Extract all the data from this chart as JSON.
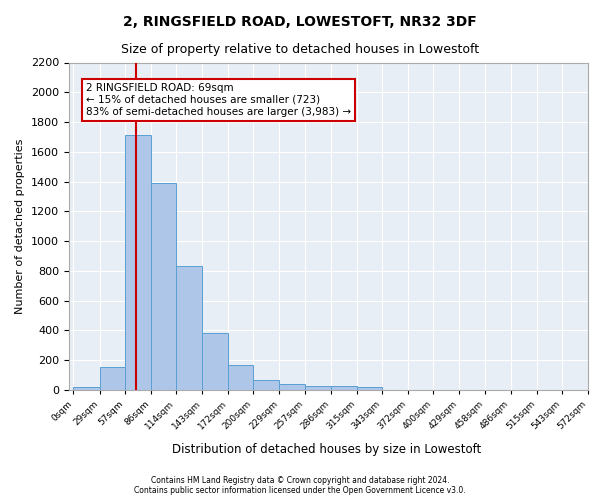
{
  "title1": "2, RINGSFIELD ROAD, LOWESTOFT, NR32 3DF",
  "title2": "Size of property relative to detached houses in Lowestoft",
  "xlabel": "Distribution of detached houses by size in Lowestoft",
  "ylabel": "Number of detached properties",
  "bar_values": [
    20,
    155,
    1710,
    1390,
    835,
    385,
    165,
    65,
    38,
    30,
    30,
    18,
    0,
    0,
    0,
    0,
    0,
    0,
    0,
    0
  ],
  "bin_edges": [
    0,
    29,
    57,
    86,
    114,
    143,
    172,
    200,
    229,
    257,
    286,
    315,
    343,
    372,
    400,
    429,
    458,
    486,
    515,
    543,
    572
  ],
  "bin_labels": [
    "0sqm",
    "29sqm",
    "57sqm",
    "86sqm",
    "114sqm",
    "143sqm",
    "172sqm",
    "200sqm",
    "229sqm",
    "257sqm",
    "286sqm",
    "315sqm",
    "343sqm",
    "372sqm",
    "400sqm",
    "429sqm",
    "458sqm",
    "486sqm",
    "515sqm",
    "543sqm",
    "572sqm"
  ],
  "bar_color": "#aec6e8",
  "bar_edge_color": "#5a9fd4",
  "background_color": "#e8eef5",
  "grid_color": "#ffffff",
  "property_line_x": 69,
  "property_line_color": "#cc0000",
  "annotation_text": "2 RINGSFIELD ROAD: 69sqm\n← 15% of detached houses are smaller (723)\n83% of semi-detached houses are larger (3,983) →",
  "annotation_box_color": "#cc0000",
  "ylim": [
    0,
    2200
  ],
  "yticks": [
    0,
    200,
    400,
    600,
    800,
    1000,
    1200,
    1400,
    1600,
    1800,
    2000,
    2200
  ],
  "footer_line1": "Contains HM Land Registry data © Crown copyright and database right 2024.",
  "footer_line2": "Contains public sector information licensed under the Open Government Licence v3.0."
}
